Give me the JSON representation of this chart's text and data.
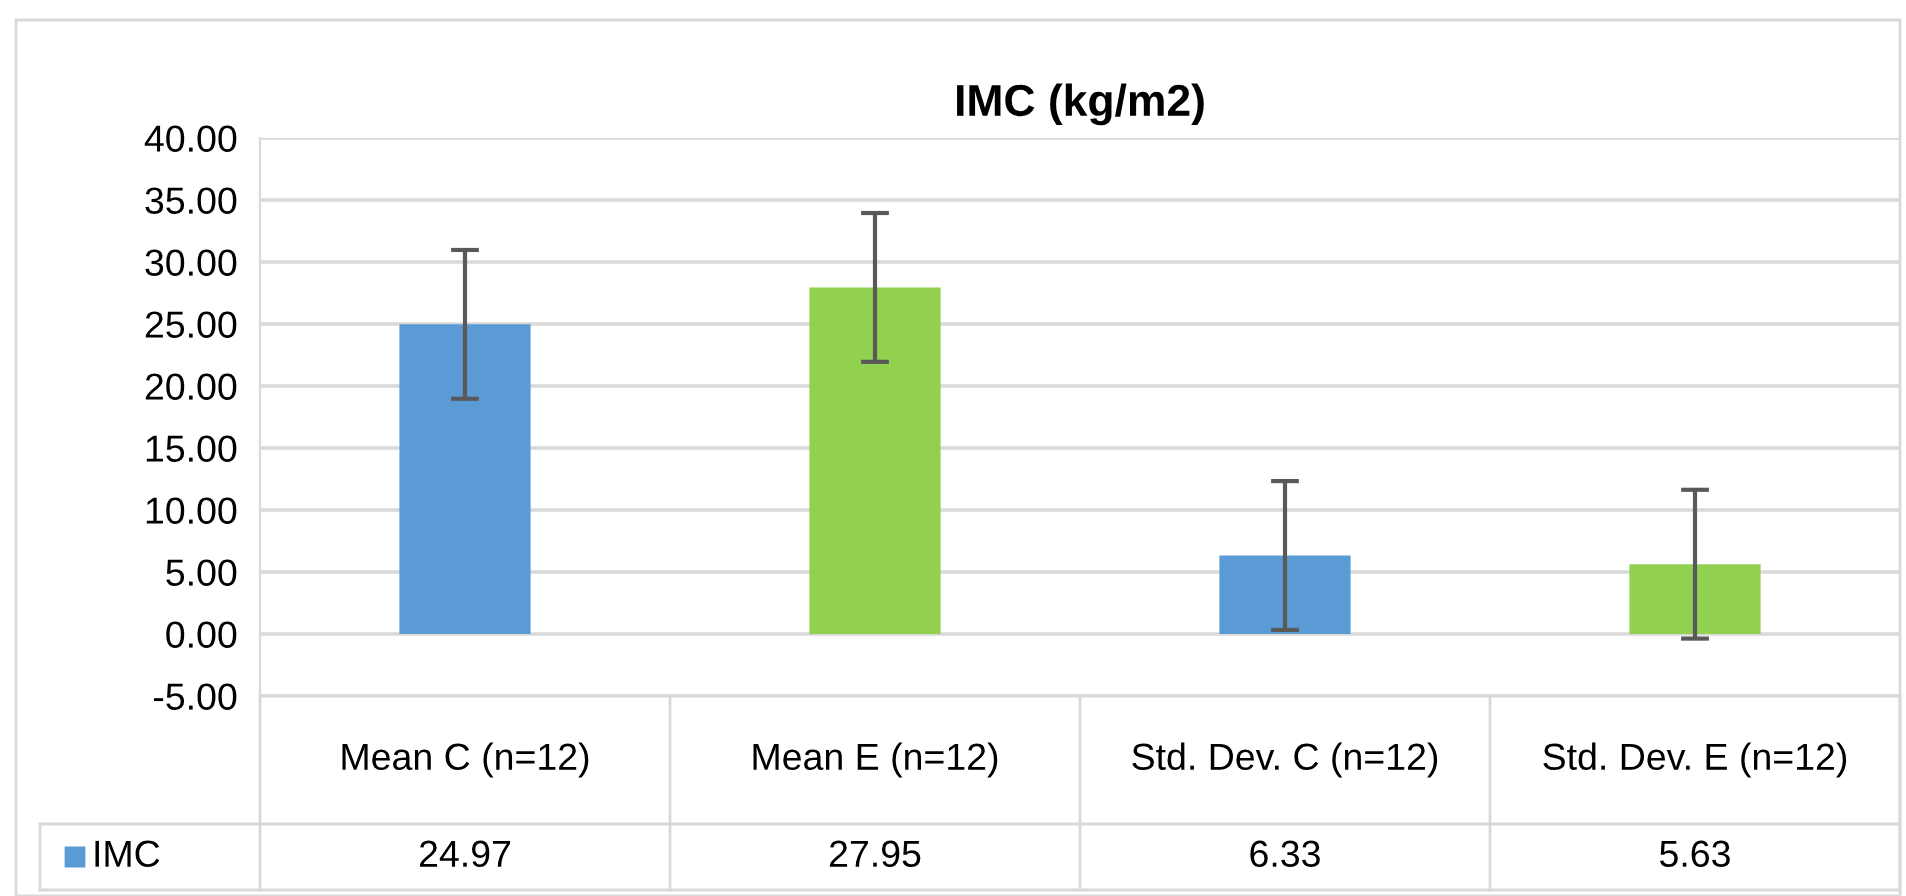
{
  "chart_data": {
    "type": "bar",
    "title": "IMC (kg/m2)",
    "categories": [
      "Mean C (n=12)",
      "Mean E (n=12)",
      "Std. Dev. C (n=12)",
      "Std. Dev. E (n=12)"
    ],
    "series": [
      {
        "name": "IMC",
        "color": "#5b9bd5",
        "colors": [
          "#5b9bd5",
          "#92d050",
          "#5b9bd5",
          "#92d050"
        ],
        "values": [
          24.97,
          27.95,
          6.33,
          5.63
        ],
        "errors": [
          6,
          6,
          6,
          6
        ]
      }
    ],
    "ylim": [
      -5,
      40
    ],
    "yticks": [
      {
        "value": -5,
        "label": "-5.00"
      },
      {
        "value": 0,
        "label": "0.00"
      },
      {
        "value": 5,
        "label": "5.00"
      },
      {
        "value": 10,
        "label": "10.00"
      },
      {
        "value": 15,
        "label": "15.00"
      },
      {
        "value": 20,
        "label": "20.00"
      },
      {
        "value": 25,
        "label": "25.00"
      },
      {
        "value": 30,
        "label": "30.00"
      },
      {
        "value": 35,
        "label": "35.00"
      },
      {
        "value": 40,
        "label": "40.00"
      }
    ],
    "grid": "y",
    "data_labels": true
  }
}
